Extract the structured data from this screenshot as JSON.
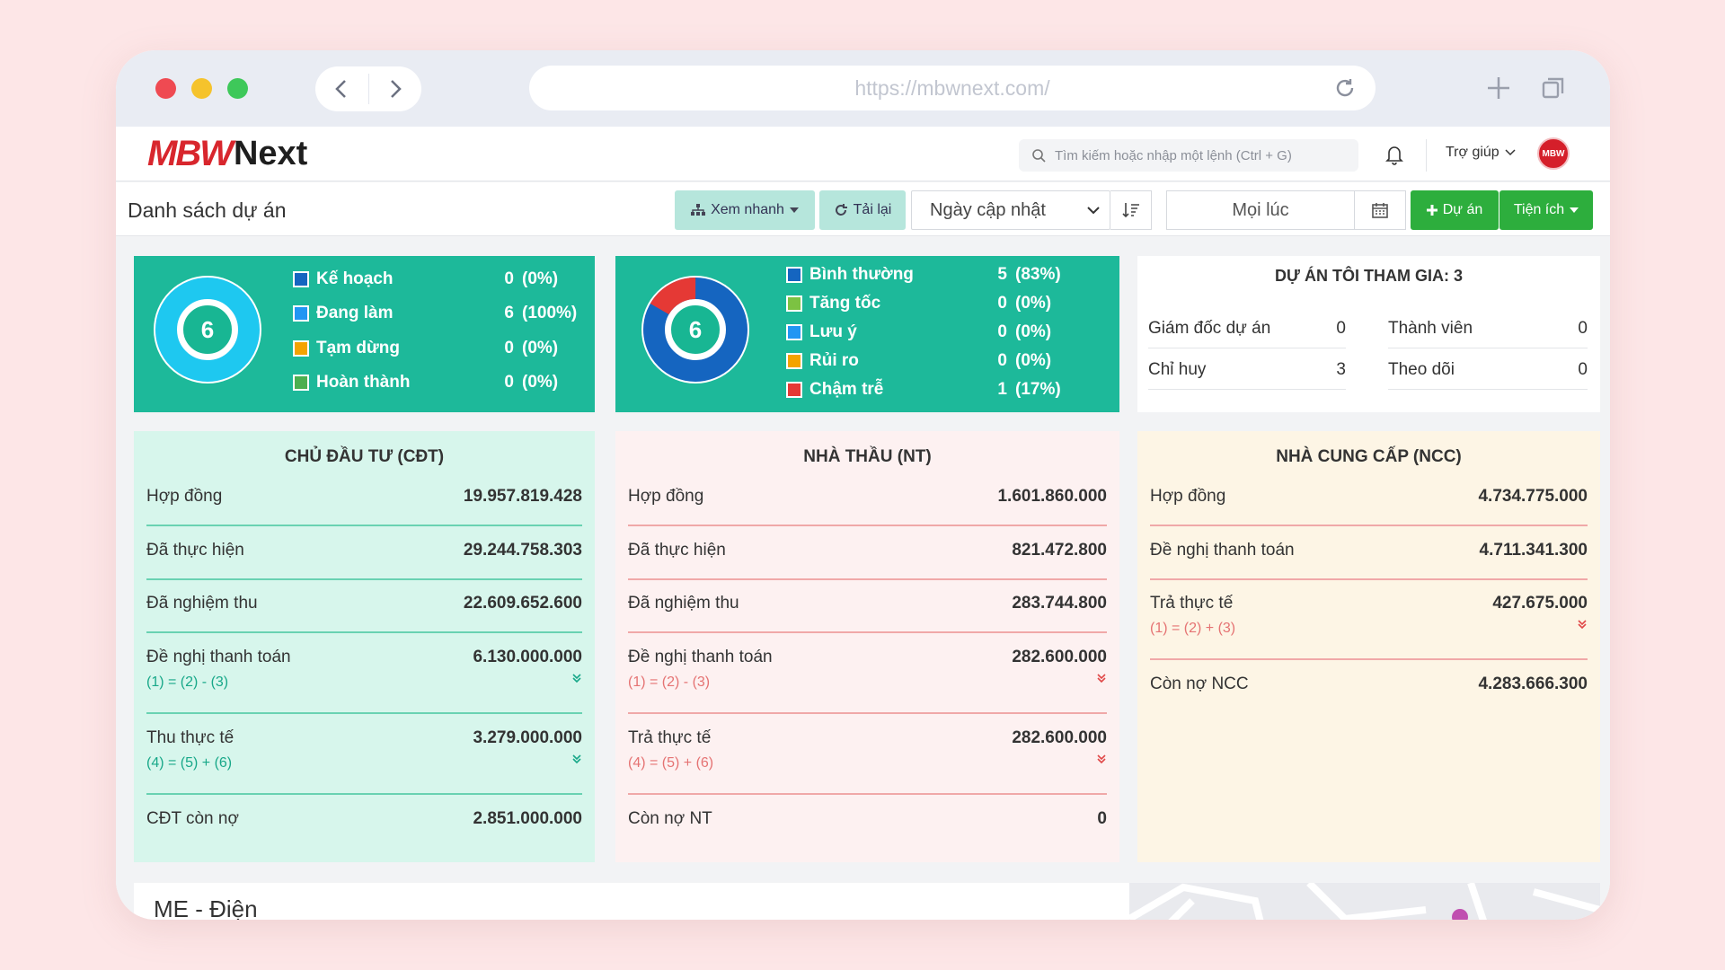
{
  "browser": {
    "url": "https://mbwnext.com/"
  },
  "header": {
    "logo_mbw": "MBW",
    "logo_next": "Next",
    "search_placeholder": "Tìm kiếm hoặc nhập một lệnh (Ctrl + G)",
    "help_label": "Trợ giúp",
    "avatar_text": "MBW"
  },
  "toolbar": {
    "title": "Danh sách dự án",
    "quick_view_label": "Xem nhanh",
    "reload_label": "Tải lại",
    "sort_field": "Ngày cập nhật",
    "date_filter": "Mọi lúc",
    "add_project_label": "Dự án",
    "utilities_label": "Tiện ích"
  },
  "status_card": {
    "total": "6",
    "items": [
      {
        "label": "Kế hoạch",
        "count": "0",
        "pct": "(0%)",
        "color": "#1565c0"
      },
      {
        "label": "Đang làm",
        "count": "6",
        "pct": "(100%)",
        "color": "#2196f3"
      },
      {
        "label": "Tạm dừng",
        "count": "0",
        "pct": "(0%)",
        "color": "#f4a300"
      },
      {
        "label": "Hoàn thành",
        "count": "0",
        "pct": "(0%)",
        "color": "#4caf50"
      }
    ]
  },
  "progress_card": {
    "total": "6",
    "items": [
      {
        "label": "Bình thường",
        "count": "5",
        "pct": "(83%)",
        "color": "#1565c0"
      },
      {
        "label": "Tăng tốc",
        "count": "0",
        "pct": "(0%)",
        "color": "#7cc242"
      },
      {
        "label": "Lưu ý",
        "count": "0",
        "pct": "(0%)",
        "color": "#2196f3"
      },
      {
        "label": "Rủi ro",
        "count": "0",
        "pct": "(0%)",
        "color": "#f4a300"
      },
      {
        "label": "Chậm trễ",
        "count": "1",
        "pct": "(17%)",
        "color": "#e53935"
      }
    ],
    "colors": {
      "normal": "#1565c0",
      "late": "#e53935"
    }
  },
  "members": {
    "title": "DỰ ÁN TÔI THAM GIA: 3",
    "rows": [
      {
        "label": "Giám đốc dự án",
        "value": "0"
      },
      {
        "label": "Thành viên",
        "value": "0"
      },
      {
        "label": "Chỉ huy",
        "value": "3"
      },
      {
        "label": "Theo dõi",
        "value": "0"
      }
    ]
  },
  "investor": {
    "title": "CHỦ ĐẦU TƯ (CĐT)",
    "rows": [
      {
        "label": "Hợp đồng",
        "value": "19.957.819.428",
        "formula": ""
      },
      {
        "label": "Đã thực hiện",
        "value": "29.244.758.303",
        "formula": ""
      },
      {
        "label": "Đã nghiệm thu",
        "value": "22.609.652.600",
        "formula": ""
      },
      {
        "label": "Đề nghị thanh toán",
        "value": "6.130.000.000",
        "formula": "(1) = (2) - (3)"
      },
      {
        "label": "Thu thực tế",
        "value": "3.279.000.000",
        "formula": "(4) = (5) + (6)"
      },
      {
        "label": "CĐT còn nợ",
        "value": "2.851.000.000",
        "formula": ""
      }
    ]
  },
  "contractor": {
    "title": "NHÀ THẦU (NT)",
    "rows": [
      {
        "label": "Hợp đồng",
        "value": "1.601.860.000",
        "formula": ""
      },
      {
        "label": "Đã thực hiện",
        "value": "821.472.800",
        "formula": ""
      },
      {
        "label": "Đã nghiệm thu",
        "value": "283.744.800",
        "formula": ""
      },
      {
        "label": "Đề nghị thanh toán",
        "value": "282.600.000",
        "formula": "(1) = (2) - (3)"
      },
      {
        "label": "Trả thực tế",
        "value": "282.600.000",
        "formula": "(4) = (5) + (6)"
      },
      {
        "label": "Còn nợ NT",
        "value": "0",
        "formula": ""
      }
    ]
  },
  "supplier": {
    "title": "NHÀ CUNG CẤP (NCC)",
    "rows": [
      {
        "label": "Hợp đồng",
        "value": "4.734.775.000",
        "formula": ""
      },
      {
        "label": "Đề nghị thanh toán",
        "value": "4.711.341.300",
        "formula": ""
      },
      {
        "label": "Trả thực tế",
        "value": "427.675.000",
        "formula": "(1) = (2) + (3)"
      },
      {
        "label": "Còn nợ NCC",
        "value": "4.283.666.300",
        "formula": ""
      }
    ]
  },
  "project_preview": {
    "title": "ME - Điện"
  }
}
